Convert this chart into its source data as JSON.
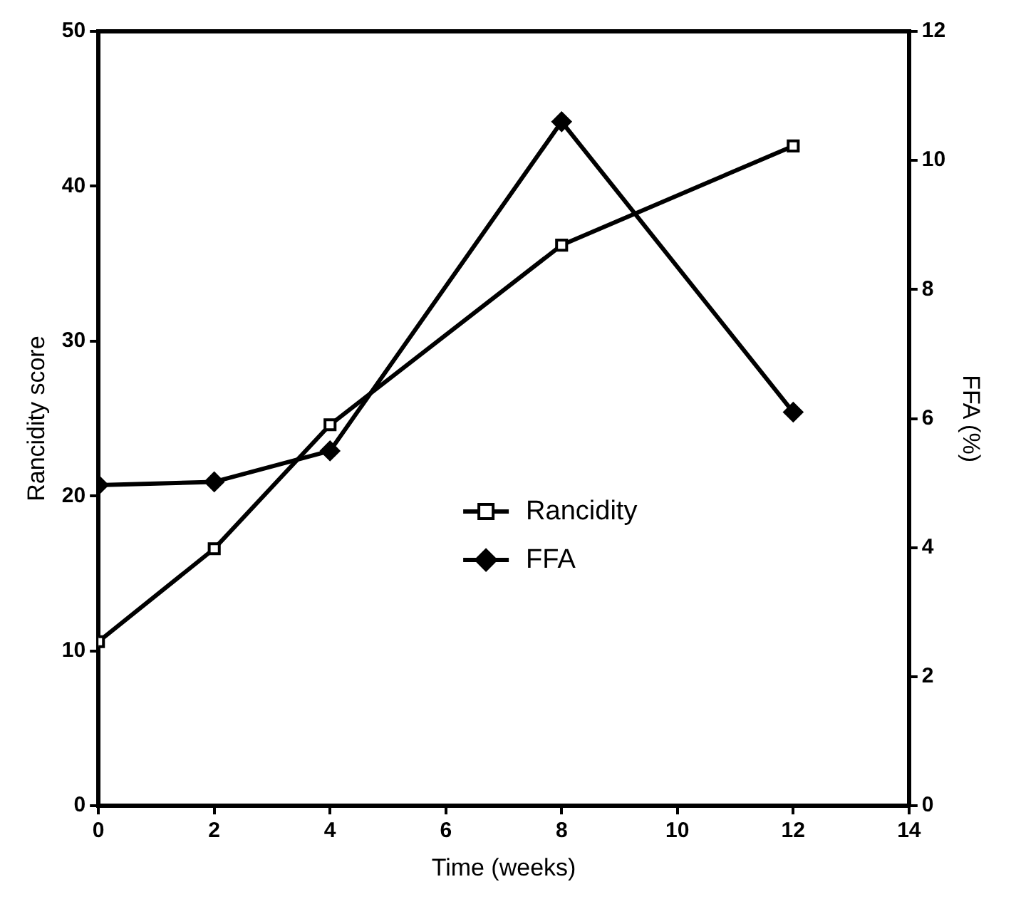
{
  "chart_data": {
    "type": "line",
    "xlabel": "Time (weeks)",
    "ylabel": "Rancidity score",
    "y2label": "FFA (%)",
    "xlim": [
      0,
      14
    ],
    "xticks": [
      0,
      2,
      4,
      6,
      8,
      10,
      12,
      14
    ],
    "ylim": [
      0,
      50
    ],
    "yticks": [
      0,
      10,
      20,
      30,
      40,
      50
    ],
    "y2lim": [
      0,
      12
    ],
    "y2ticks": [
      0,
      2,
      4,
      6,
      8,
      10,
      12
    ],
    "grid": false,
    "legend": "center",
    "line_style": "solid",
    "series": [
      {
        "name": "Rancidity",
        "color": "#000000",
        "marker": "square",
        "x": [
          0,
          2,
          4,
          8,
          12
        ],
        "values": [
          10.6,
          16.6,
          24.6,
          36.2,
          42.6
        ]
      },
      {
        "name": "FFA",
        "color": "#000000",
        "marker": "diamond",
        "axis": "y2",
        "x": [
          0,
          2,
          4,
          8,
          12
        ],
        "values": [
          4.97,
          5.02,
          5.5,
          10.6,
          6.1
        ]
      }
    ]
  }
}
